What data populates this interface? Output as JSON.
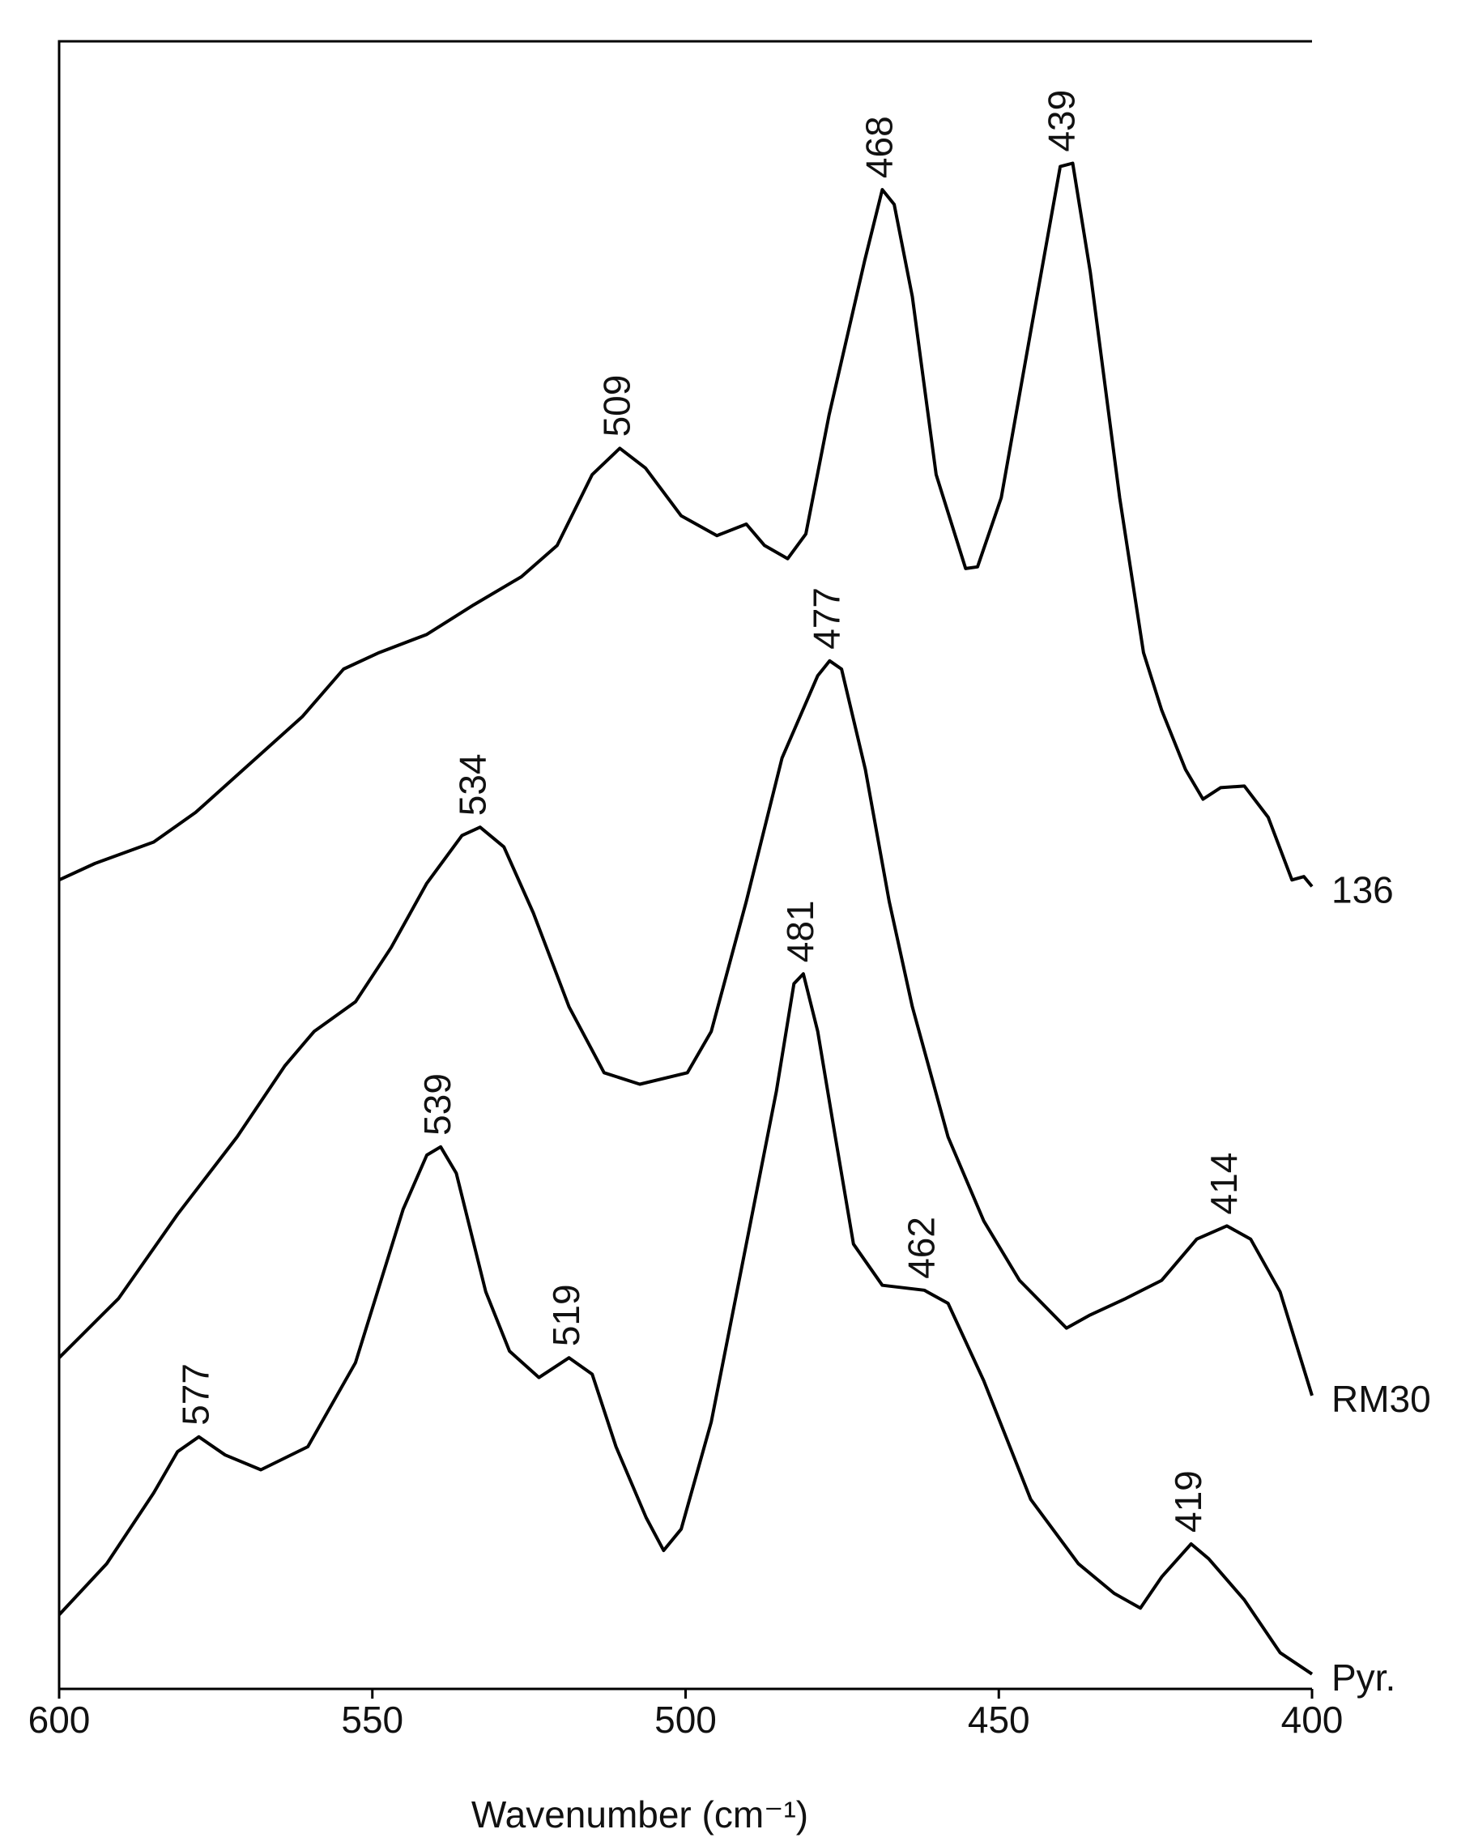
{
  "chart_data": {
    "type": "line",
    "x_label": "Wavenumber (cm⁻¹)",
    "xlim": [
      600,
      400
    ],
    "xticks": [
      600,
      550,
      500,
      450,
      400
    ],
    "ylim": [
      0,
      100
    ],
    "series": [
      {
        "name": "136",
        "color": "#000000",
        "x": [
          600,
          594.3,
          584.9,
          578.2,
          569.7,
          561.2,
          554.6,
          548.9,
          541.3,
          533.8,
          526.2,
          520.5,
          514.9,
          510.5,
          506.4,
          500.7,
          495.0,
          490.3,
          487.4,
          483.7,
          480.8,
          477.1,
          471.4,
          468.6,
          466.7,
          463.8,
          460.0,
          455.3,
          453.4,
          449.6,
          444.9,
          440.2,
          438.2,
          435.4,
          430.7,
          426.9,
          424.0,
          420.2,
          417.4,
          414.6,
          410.8,
          407.0,
          403.2,
          401.3,
          400
        ],
        "values": [
          49.1,
          50.1,
          51.4,
          53.2,
          56.1,
          59.0,
          61.9,
          62.9,
          64.0,
          65.8,
          67.5,
          69.4,
          73.7,
          75.3,
          74.1,
          71.2,
          70.0,
          70.7,
          69.4,
          68.6,
          70.1,
          77.3,
          86.7,
          91.0,
          90.1,
          84.5,
          73.7,
          68.0,
          68.1,
          72.3,
          82.4,
          92.4,
          92.6,
          86.0,
          72.3,
          62.9,
          59.4,
          55.8,
          54.0,
          54.7,
          54.8,
          52.9,
          49.1,
          49.3,
          48.7
        ]
      },
      {
        "name": "RM30",
        "color": "#000000",
        "x": [
          600,
          590.5,
          581.1,
          571.6,
          564.0,
          559.3,
          552.7,
          547.0,
          541.3,
          535.7,
          532.8,
          529.0,
          524.3,
          518.6,
          513.0,
          507.3,
          499.7,
          495.9,
          490.3,
          484.6,
          478.9,
          477.0,
          475.1,
          471.3,
          467.5,
          463.8,
          458.1,
          452.4,
          446.7,
          439.2,
          435.4,
          429.7,
          424.0,
          418.4,
          413.6,
          409.8,
          405.1,
          400
        ],
        "values": [
          20.1,
          23.7,
          28.8,
          33.5,
          37.8,
          39.9,
          41.7,
          45.0,
          48.9,
          51.8,
          52.3,
          51.1,
          47.1,
          41.4,
          37.4,
          36.7,
          37.4,
          39.9,
          47.8,
          56.5,
          61.5,
          62.4,
          61.9,
          55.8,
          47.8,
          41.4,
          33.5,
          28.4,
          24.8,
          21.9,
          22.7,
          23.7,
          24.8,
          27.3,
          28.1,
          27.3,
          24.1,
          17.8
        ]
      },
      {
        "name": "Pyr.",
        "color": "#000000",
        "x": [
          600,
          592.4,
          584.9,
          581.1,
          577.7,
          573.5,
          567.8,
          560.3,
          552.7,
          545.1,
          541.3,
          539.1,
          536.6,
          531.9,
          528.1,
          523.4,
          518.6,
          514.9,
          511.1,
          506.3,
          503.5,
          500.7,
          495.9,
          490.3,
          485.5,
          482.7,
          481.2,
          478.9,
          476.1,
          473.2,
          468.6,
          461.9,
          458.1,
          452.4,
          444.9,
          437.3,
          431.6,
          427.4,
          424.0,
          419.3,
          416.5,
          410.8,
          405.1,
          400
        ],
        "values": [
          4.5,
          7.6,
          11.9,
          14.4,
          15.3,
          14.2,
          13.3,
          14.7,
          19.8,
          29.1,
          32.4,
          32.9,
          31.3,
          24.1,
          20.5,
          18.9,
          20.1,
          19.1,
          14.7,
          10.4,
          8.4,
          9.7,
          16.2,
          27.0,
          36.3,
          42.8,
          43.4,
          39.9,
          33.5,
          27.0,
          24.5,
          24.2,
          23.4,
          18.7,
          11.5,
          7.6,
          5.8,
          4.9,
          6.8,
          8.8,
          7.9,
          5.4,
          2.2,
          0.9
        ]
      }
    ],
    "annotations": [
      {
        "text": "509",
        "x": 510.5,
        "y": 75.3
      },
      {
        "text": "468",
        "x": 468.6,
        "y": 91.0
      },
      {
        "text": "439",
        "x": 439.5,
        "y": 92.6
      },
      {
        "text": "477",
        "x": 477.0,
        "y": 62.4
      },
      {
        "text": "534",
        "x": 533.5,
        "y": 52.3
      },
      {
        "text": "481",
        "x": 481.2,
        "y": 43.4
      },
      {
        "text": "539",
        "x": 539.1,
        "y": 32.9
      },
      {
        "text": "519",
        "x": 518.6,
        "y": 20.1
      },
      {
        "text": "462",
        "x": 461.9,
        "y": 24.2
      },
      {
        "text": "414",
        "x": 413.6,
        "y": 28.1
      },
      {
        "text": "577",
        "x": 577.7,
        "y": 15.3
      },
      {
        "text": "419",
        "x": 419.3,
        "y": 8.8
      }
    ]
  }
}
